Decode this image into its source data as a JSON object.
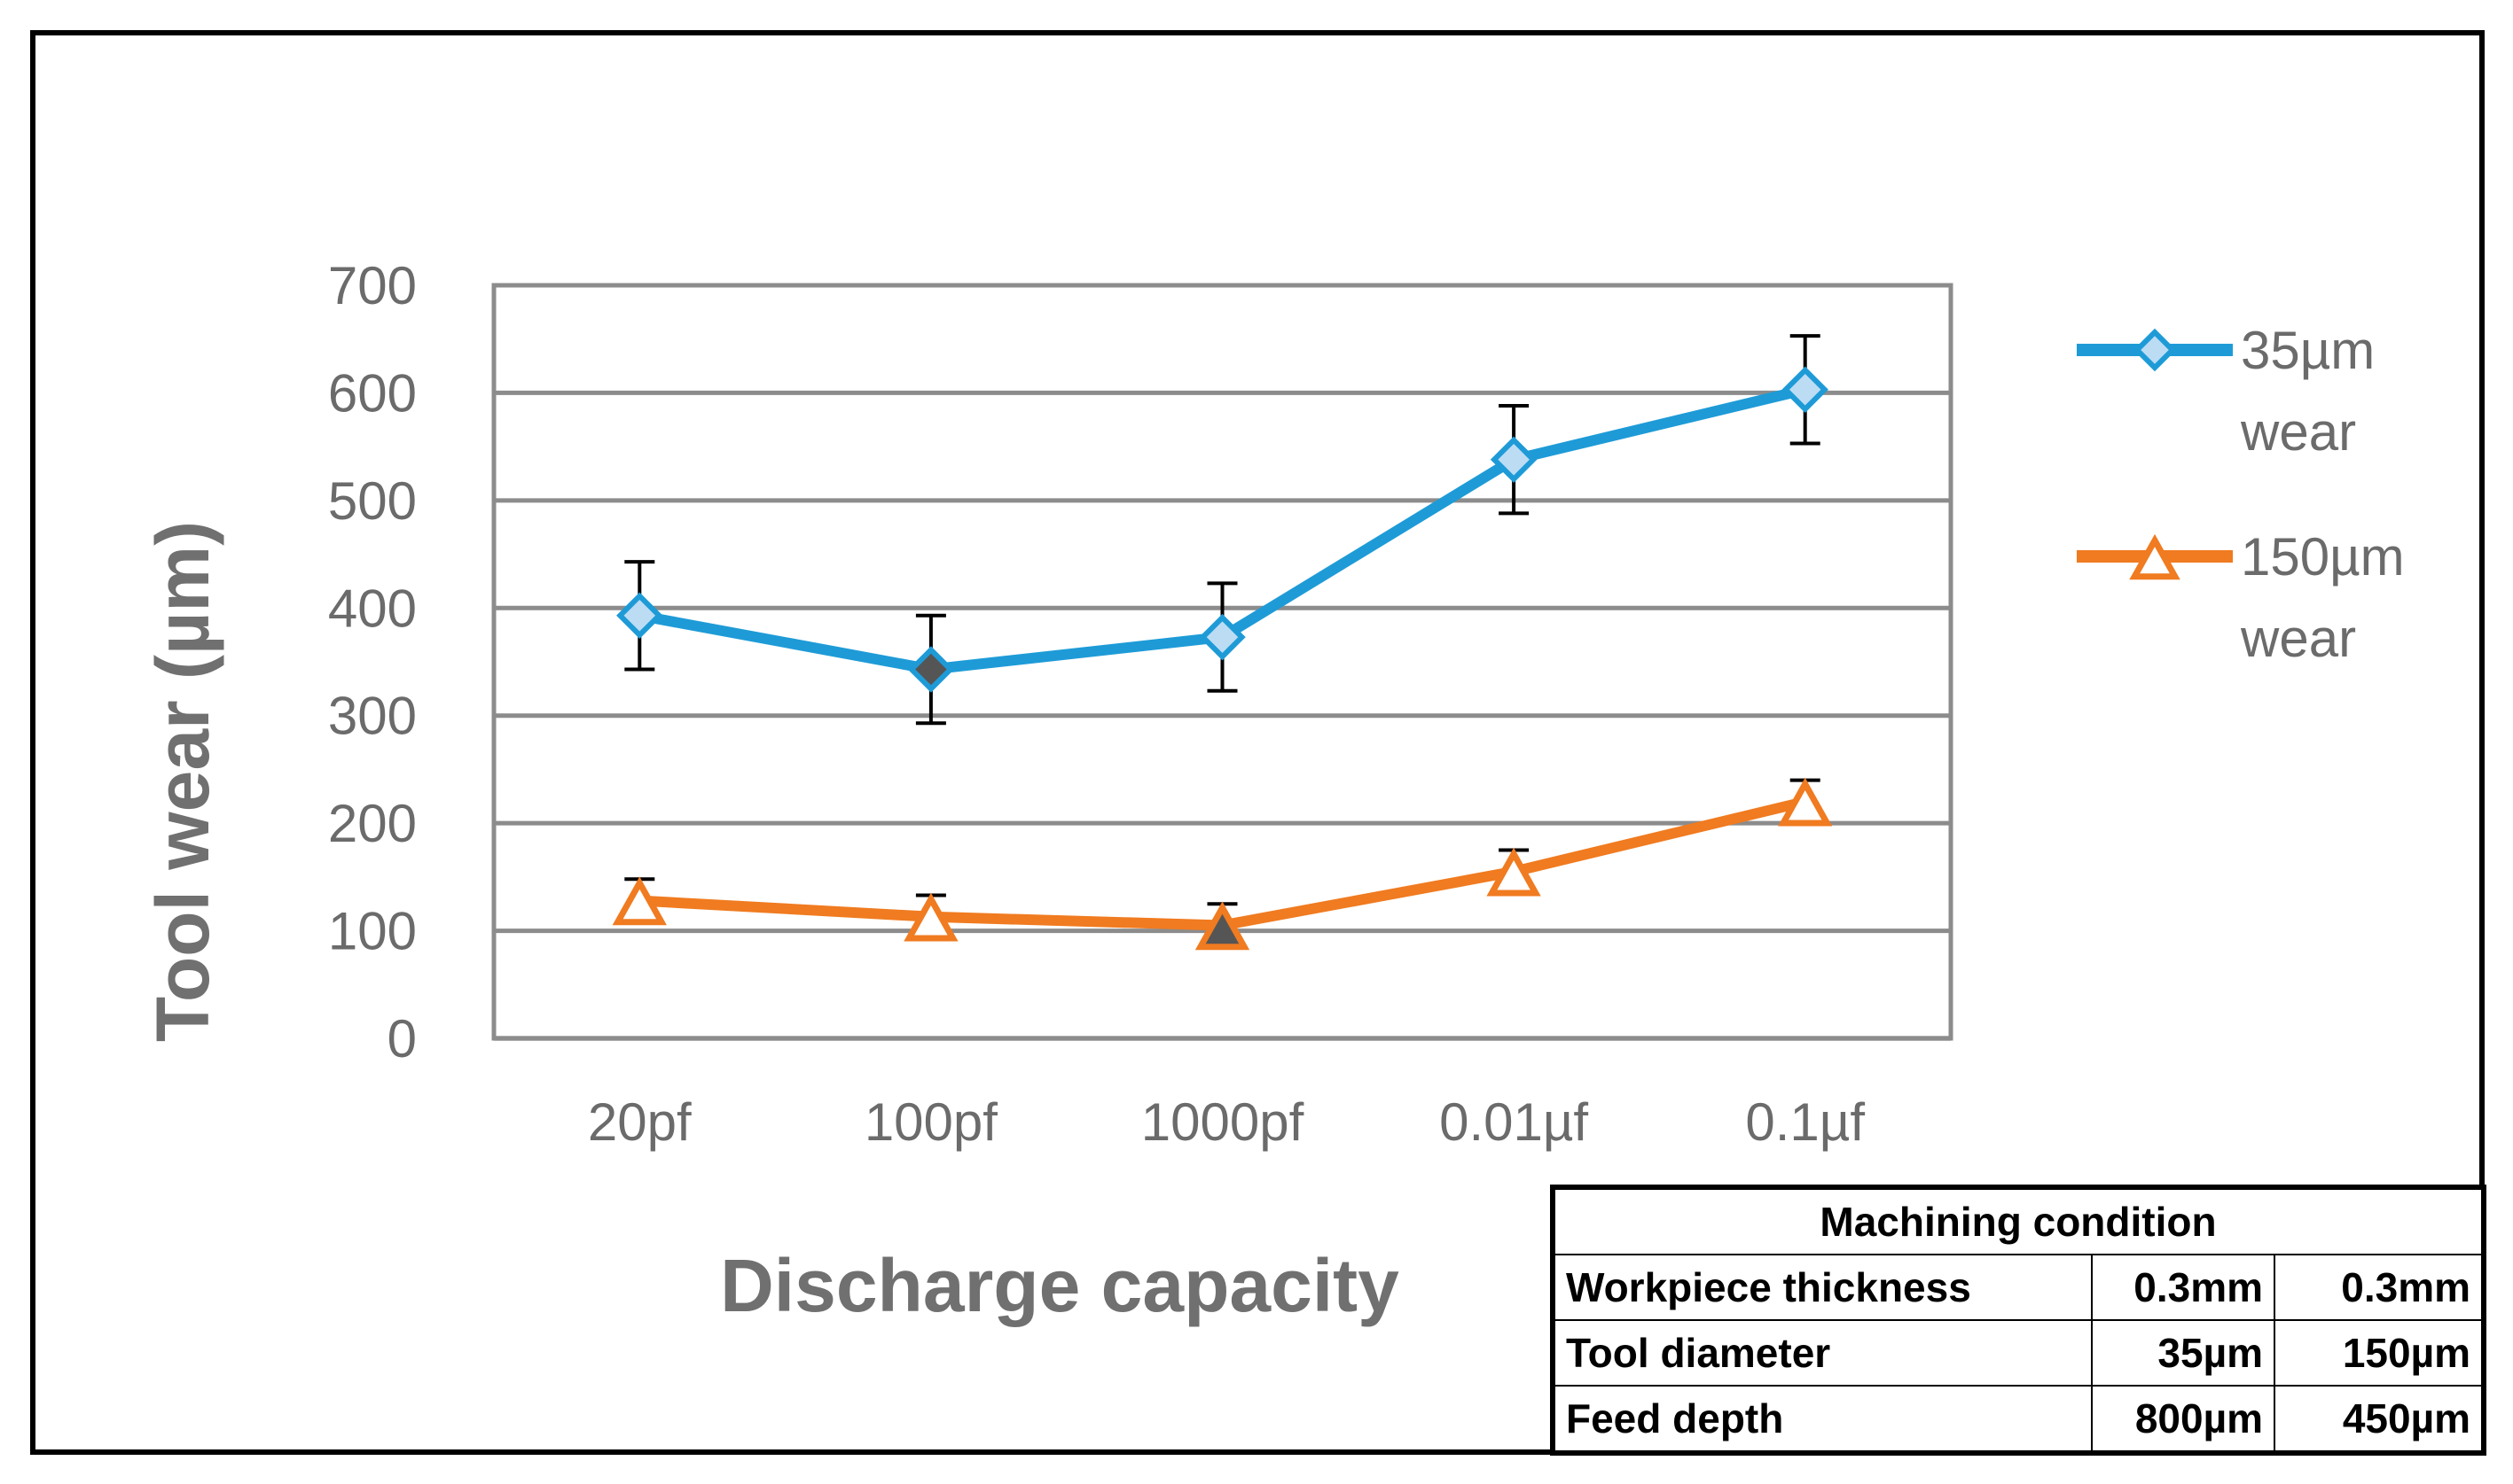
{
  "chart_data": {
    "type": "line",
    "title": "",
    "xlabel": "Discharge capacity",
    "ylabel": "Tool wear (µm)",
    "categories": [
      "20pf",
      "100pf",
      "1000pf",
      "0.01µf",
      "0.1µf"
    ],
    "ylim": [
      0,
      700
    ],
    "yticks": [
      0,
      100,
      200,
      300,
      400,
      500,
      600,
      700
    ],
    "grid": true,
    "legend_position": "right",
    "series": [
      {
        "name": "35µm wear",
        "legend_lines": [
          "35µm",
          "wear"
        ],
        "color": "#1e9bd7",
        "marker": "diamond",
        "marker_fill": "#bcdcf4",
        "highlight_fill": "#555555",
        "highlight_index": 1,
        "values": [
          393,
          343,
          373,
          538,
          603
        ],
        "error": [
          50,
          50,
          50,
          50,
          50
        ]
      },
      {
        "name": "150µm wear",
        "legend_lines": [
          "150µm",
          "wear"
        ],
        "color": "#f07b20",
        "marker": "triangle",
        "marker_fill": "#ffffff",
        "highlight_fill": "#555555",
        "highlight_index": 2,
        "values": [
          128,
          113,
          105,
          155,
          220
        ],
        "error": [
          20,
          20,
          20,
          20,
          20
        ]
      }
    ]
  },
  "table": {
    "title": "Machining condition",
    "rows": [
      {
        "label": "Workpiece thickness",
        "v1": "0.3mm",
        "v2": "0.3mm"
      },
      {
        "label": "Tool diameter",
        "v1": "35µm",
        "v2": "150µm"
      },
      {
        "label": "Feed depth",
        "v1": "800µm",
        "v2": "450µm"
      }
    ]
  }
}
